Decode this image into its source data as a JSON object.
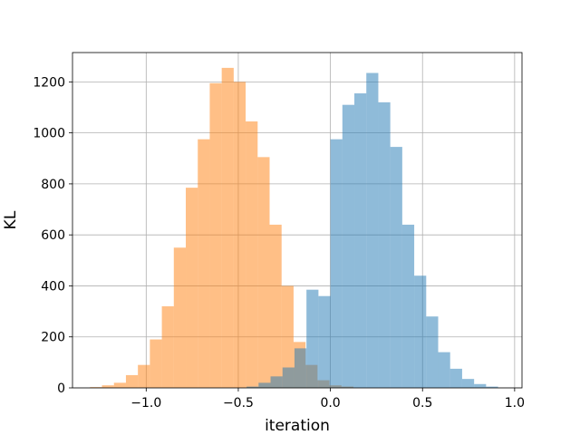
{
  "chart_data": {
    "type": "bar",
    "subtype": "overlaid-histogram",
    "title": "",
    "xlabel": "iteration",
    "ylabel": "KL",
    "xlim": [
      -1.4,
      1.04
    ],
    "ylim": [
      0,
      1315
    ],
    "xticks": [
      -1.0,
      -0.5,
      0.0,
      0.5,
      1.0
    ],
    "xtick_labels": [
      "−1.0",
      "−0.5",
      "0.0",
      "0.5",
      "1.0"
    ],
    "yticks": [
      0,
      200,
      400,
      600,
      800,
      1000,
      1200
    ],
    "ytick_labels": [
      "0",
      "200",
      "400",
      "600",
      "800",
      "1000",
      "1200"
    ],
    "grid": true,
    "legend": "none",
    "series": [
      {
        "color": "#ff7f0e",
        "opacity": 0.5,
        "bin_edges": [
          -1.305,
          -1.24,
          -1.175,
          -1.11,
          -1.045,
          -0.98,
          -0.915,
          -0.85,
          -0.785,
          -0.72,
          -0.655,
          -0.59,
          -0.525,
          -0.46,
          -0.395,
          -0.33,
          -0.265,
          -0.2,
          -0.135,
          -0.07,
          -0.005,
          0.06,
          0.125
        ],
        "counts": [
          3,
          10,
          20,
          50,
          90,
          190,
          320,
          550,
          785,
          975,
          1195,
          1255,
          1200,
          1045,
          905,
          640,
          400,
          180,
          90,
          30,
          10,
          5
        ]
      },
      {
        "color": "#1f77b4",
        "opacity": 0.5,
        "bin_edges": [
          -0.455,
          -0.39,
          -0.325,
          -0.26,
          -0.195,
          -0.13,
          -0.065,
          0.0,
          0.065,
          0.13,
          0.195,
          0.26,
          0.325,
          0.39,
          0.455,
          0.52,
          0.585,
          0.65,
          0.715,
          0.78,
          0.845,
          0.91
        ],
        "counts": [
          5,
          20,
          45,
          80,
          155,
          385,
          360,
          975,
          1110,
          1155,
          1235,
          1120,
          945,
          640,
          440,
          280,
          140,
          75,
          35,
          15,
          5
        ]
      }
    ]
  }
}
